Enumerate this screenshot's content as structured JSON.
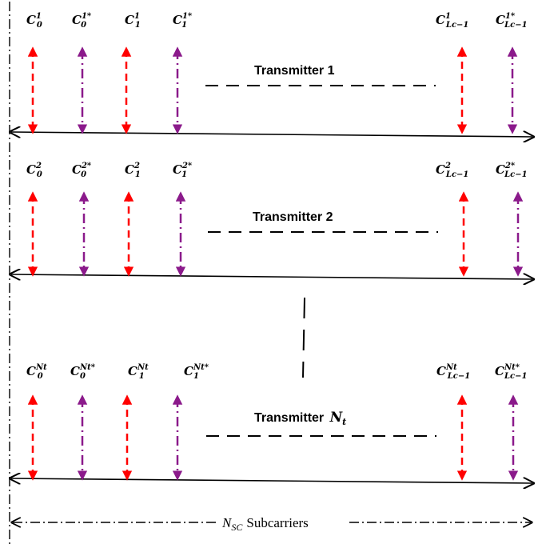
{
  "colors": {
    "data_arrow": "#ff0000",
    "conjugate_arrow": "#8b1a8b",
    "axis": "#000000"
  },
  "transmitters": [
    {
      "label": "Transmitter 1",
      "label_main": "",
      "label_sub": "",
      "symbols": [
        {
          "base": "C",
          "sup": "1",
          "sub": "0",
          "kind": "data"
        },
        {
          "base": "C",
          "sup": "1*",
          "sub": "0",
          "kind": "conjugate"
        },
        {
          "base": "C",
          "sup": "1",
          "sub": "1",
          "kind": "data"
        },
        {
          "base": "C",
          "sup": "1*",
          "sub": "1",
          "kind": "conjugate"
        },
        {
          "base": "C",
          "sup": "1",
          "sub": "Lc−1",
          "kind": "data"
        },
        {
          "base": "C",
          "sup": "1*",
          "sub": "Lc−1",
          "kind": "conjugate"
        }
      ]
    },
    {
      "label": "Transmitter 2",
      "label_main": "",
      "label_sub": "",
      "symbols": [
        {
          "base": "C",
          "sup": "2",
          "sub": "0",
          "kind": "data"
        },
        {
          "base": "C",
          "sup": "2*",
          "sub": "0",
          "kind": "conjugate"
        },
        {
          "base": "C",
          "sup": "2",
          "sub": "1",
          "kind": "data"
        },
        {
          "base": "C",
          "sup": "2*",
          "sub": "1",
          "kind": "conjugate"
        },
        {
          "base": "C",
          "sup": "2",
          "sub": "Lc−1",
          "kind": "data"
        },
        {
          "base": "C",
          "sup": "2*",
          "sub": "Lc−1",
          "kind": "conjugate"
        }
      ]
    },
    {
      "label": "Transmitter ",
      "label_main": "N",
      "label_sub": "t",
      "symbols": [
        {
          "base": "C",
          "sup": "Nt",
          "sub": "0",
          "kind": "data"
        },
        {
          "base": "C",
          "sup": "Nt*",
          "sub": "0",
          "kind": "conjugate"
        },
        {
          "base": "C",
          "sup": "Nt",
          "sub": "1",
          "kind": "data"
        },
        {
          "base": "C",
          "sup": "Nt*",
          "sub": "1",
          "kind": "conjugate"
        },
        {
          "base": "C",
          "sup": "Nt",
          "sub": "Lc−1",
          "kind": "data"
        },
        {
          "base": "C",
          "sup": "Nt*",
          "sub": "Lc−1",
          "kind": "conjugate"
        }
      ]
    }
  ],
  "subcarriers": {
    "symbol_main": "N",
    "symbol_sub": "SC",
    "label": "Subcarriers"
  }
}
